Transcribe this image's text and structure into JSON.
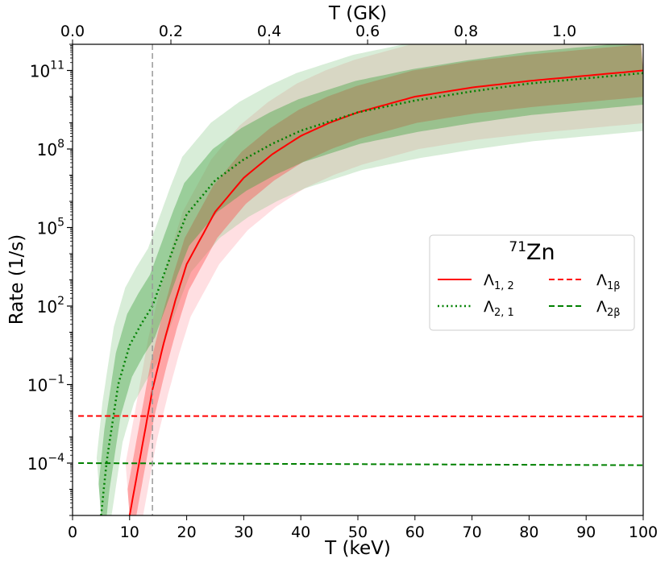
{
  "chart_data": {
    "type": "line",
    "title": "",
    "xlabel": "T (keV)",
    "xlabel_top": "T (GK)",
    "ylabel": "Rate (1/s)",
    "xlim": [
      0,
      100
    ],
    "ylim_log10": [
      -6,
      12
    ],
    "y_scale": "log",
    "x_ticks": [
      0,
      10,
      20,
      30,
      40,
      50,
      60,
      70,
      80,
      90,
      100
    ],
    "x_tick_labels": [
      "0",
      "10",
      "20",
      "30",
      "40",
      "50",
      "60",
      "70",
      "80",
      "90",
      "100"
    ],
    "top_ticks_GK": [
      0.0,
      0.2,
      0.4,
      0.6,
      0.8,
      1.0
    ],
    "top_tick_labels": [
      "0.0",
      "0.2",
      "0.4",
      "0.6",
      "0.8",
      "1.0"
    ],
    "y_ticks_exp": [
      -4,
      -1,
      2,
      5,
      8,
      11
    ],
    "y_tick_base": "10",
    "y_tick_exps": [
      "−4",
      "−1",
      "2",
      "5",
      "8",
      "11"
    ],
    "vline_keV": 14,
    "legend": {
      "title_sup": "71",
      "title_main": "Zn",
      "position": "center-right",
      "entries": [
        {
          "label_main": "Λ",
          "label_sub": "1, 2",
          "style": "solid",
          "color": "#ff0000"
        },
        {
          "label_main": "Λ",
          "label_sub": "1β",
          "style": "dashed",
          "color": "#ff0000"
        },
        {
          "label_main": "Λ",
          "label_sub": "2, 1",
          "style": "dotted",
          "color": "#008000"
        },
        {
          "label_main": "Λ",
          "label_sub": "2β",
          "style": "dashed",
          "color": "#008000"
        }
      ]
    },
    "series": [
      {
        "name": "Λ1,2",
        "style": "solid",
        "color": "#ff0000",
        "x": [
          10,
          12,
          14,
          16,
          18,
          20,
          25,
          30,
          35,
          40,
          45,
          50,
          60,
          70,
          80,
          90,
          100
        ],
        "log10_y": [
          -6.0,
          -3.6,
          -1.2,
          0.6,
          2.2,
          3.6,
          5.6,
          6.9,
          7.8,
          8.5,
          9.0,
          9.4,
          10.0,
          10.35,
          10.6,
          10.8,
          11.0
        ],
        "band_inner": 1.0,
        "band_outer": 2.0
      },
      {
        "name": "Λ2,1",
        "style": "dotted",
        "color": "#008000",
        "x": [
          5,
          6,
          8,
          10,
          12,
          14,
          16,
          18,
          20,
          25,
          30,
          35,
          40,
          50,
          60,
          70,
          80,
          90,
          100
        ],
        "log10_y": [
          -6.0,
          -3.9,
          -1.0,
          0.5,
          1.3,
          2.0,
          3.2,
          4.4,
          5.5,
          6.8,
          7.6,
          8.2,
          8.7,
          9.4,
          9.85,
          10.2,
          10.5,
          10.7,
          10.9
        ],
        "band_inner": 1.2,
        "band_outer": 2.2
      },
      {
        "name": "Λ1β",
        "style": "dashed",
        "color": "#ff0000",
        "x": [
          1,
          100
        ],
        "log10_y": [
          -2.2,
          -2.22
        ]
      },
      {
        "name": "Λ2β",
        "style": "dashed",
        "color": "#008000",
        "x": [
          1,
          100
        ],
        "log10_y": [
          -4.0,
          -4.08
        ]
      }
    ]
  }
}
